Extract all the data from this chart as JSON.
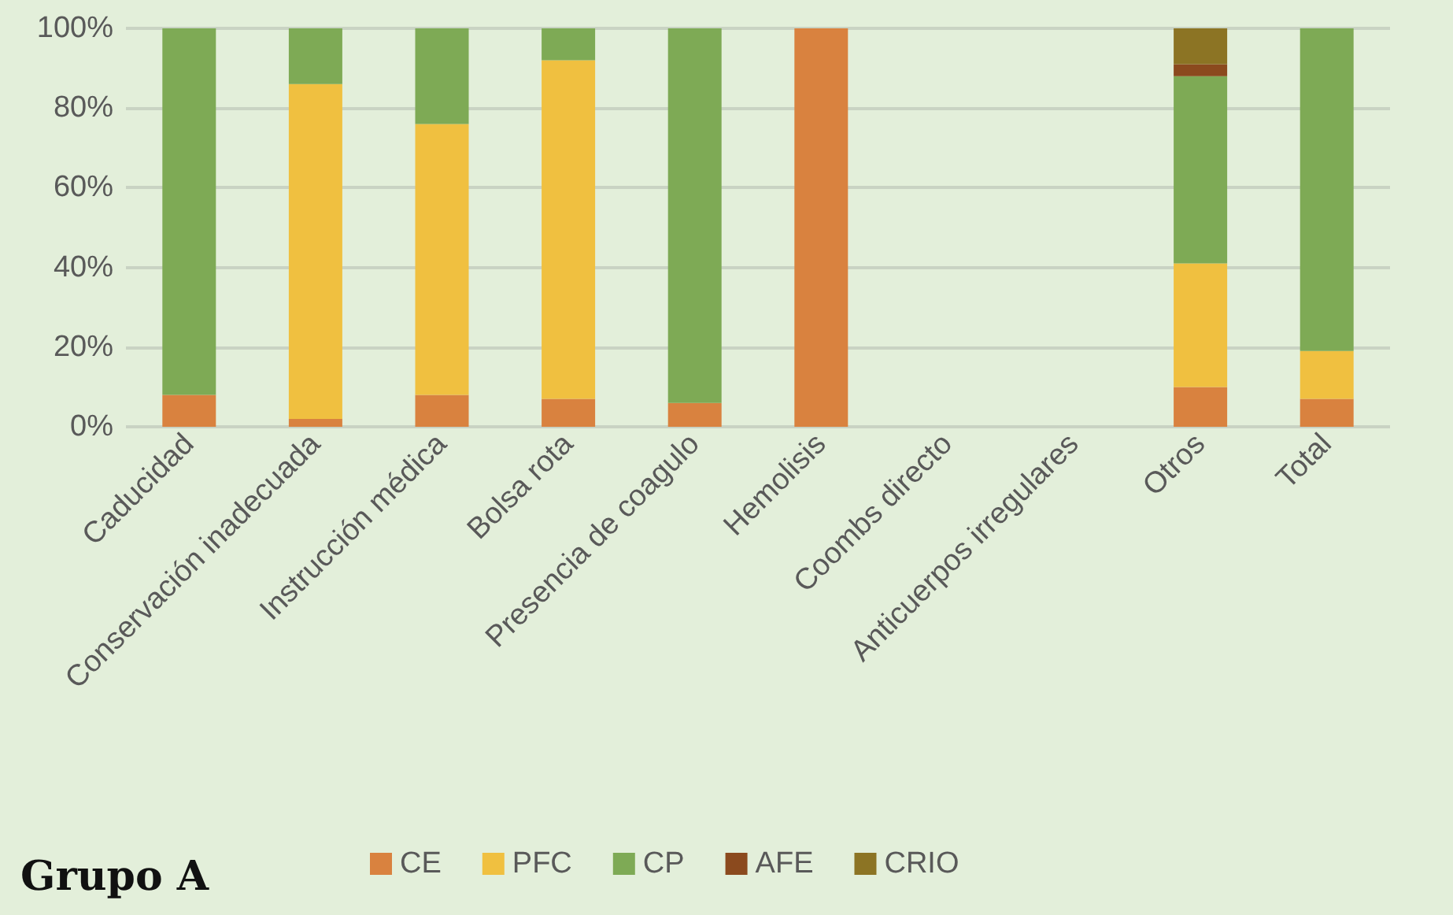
{
  "chart_data": {
    "type": "bar",
    "stacked": true,
    "title": "Grupo A",
    "categories": [
      "Caducidad",
      "Conservación inadecuada",
      "Instrucción médica",
      "Bolsa rota",
      "Presencia de coagulo",
      "Hemolisis",
      "Coombs directo",
      "Anticuerpos irregulares",
      "Otros",
      "Total"
    ],
    "series": [
      {
        "name": "CE",
        "color": "#d9823f",
        "values": [
          8,
          2,
          8,
          7,
          6,
          100,
          0,
          0,
          10,
          7
        ]
      },
      {
        "name": "PFC",
        "color": "#f0c040",
        "values": [
          0,
          84,
          68,
          85,
          0,
          0,
          0,
          0,
          31,
          12
        ]
      },
      {
        "name": "CP",
        "color": "#7eaa55",
        "values": [
          92,
          14,
          24,
          8,
          94,
          0,
          0,
          0,
          47,
          81
        ]
      },
      {
        "name": "AFE",
        "color": "#8b4a1e",
        "values": [
          0,
          0,
          0,
          0,
          0,
          0,
          0,
          0,
          3,
          0
        ]
      },
      {
        "name": "CRIO",
        "color": "#8c7424",
        "values": [
          0,
          0,
          0,
          0,
          0,
          0,
          0,
          0,
          9,
          0
        ]
      }
    ],
    "ylim": [
      0,
      100
    ],
    "yticks": [
      {
        "value": 0,
        "label": "0%"
      },
      {
        "value": 20,
        "label": "20%"
      },
      {
        "value": 40,
        "label": "40%"
      },
      {
        "value": 60,
        "label": "60%"
      },
      {
        "value": 80,
        "label": "80%"
      },
      {
        "value": 100,
        "label": "100%"
      }
    ],
    "grid": "y",
    "legend": "bottom"
  }
}
